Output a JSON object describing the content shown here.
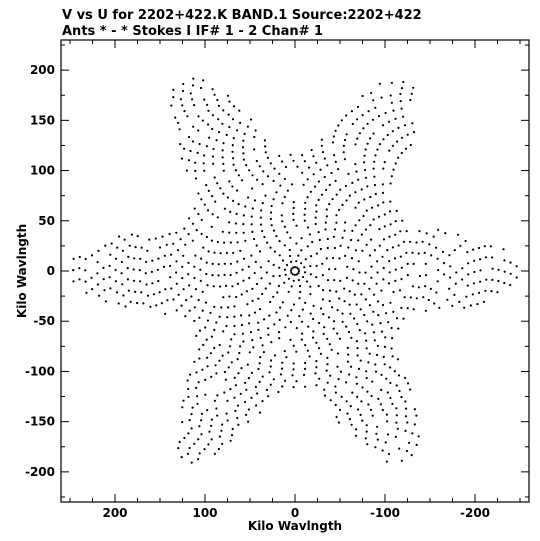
{
  "header": {
    "line1": "V vs U for 2202+422.K BAND.1   Source:2202+422",
    "line2": "Ants * - *     Stokes I  IF# 1 - 2  Chan# 1"
  },
  "chart_data": {
    "type": "scatter",
    "xlabel": "Kilo Wavlngth",
    "ylabel": "Kilo Wavlngth",
    "x_reversed": true,
    "xlim": [
      260,
      -260
    ],
    "ylim": [
      -230,
      230
    ],
    "x_ticks": [
      200,
      100,
      0,
      -100,
      -200
    ],
    "y_ticks": [
      200,
      150,
      100,
      50,
      0,
      -50,
      -100,
      -150,
      -200
    ],
    "point_color": "#000000",
    "uv_pattern": {
      "description_of_data": "uv-coverage tracks: concentric elliptical arcs around origin with six-armed star-shaped envelope",
      "max_radius": 222,
      "arm_angles_deg": [
        0,
        60,
        120,
        180,
        240,
        300
      ],
      "arc_radii_step": 6
    }
  }
}
